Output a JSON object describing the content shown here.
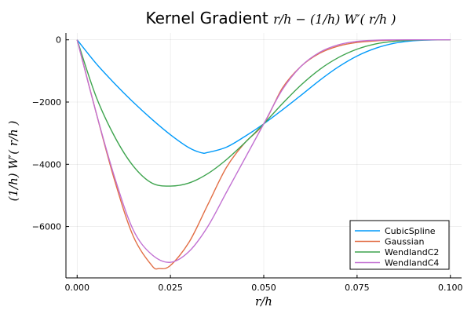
{
  "chart_data": {
    "type": "line",
    "title": "Kernel Gradient",
    "title_expr": "r/h − (1/h) W′( r/h )",
    "xlabel": "r/h",
    "ylabel": "(1/h) W′( r/h )",
    "xlim": [
      -0.003,
      0.103
    ],
    "ylim": [
      -7650,
      220
    ],
    "xticks": [
      0.0,
      0.025,
      0.05,
      0.075,
      0.1
    ],
    "xtick_labels": [
      "0.000",
      "0.025",
      "0.050",
      "0.075",
      "0.100"
    ],
    "yticks": [
      0,
      -2000,
      -4000,
      -6000
    ],
    "ytick_labels": [
      "0",
      "−2000",
      "−4000",
      "−6000"
    ],
    "grid": true,
    "legend_position": "bottom-right",
    "series": [
      {
        "name": "CubicSpline",
        "color": "#009AFA",
        "x": [
          0,
          0.005,
          0.01,
          0.015,
          0.02,
          0.025,
          0.03,
          0.0333,
          0.035,
          0.04,
          0.045,
          0.05,
          0.055,
          0.06,
          0.065,
          0.07,
          0.075,
          0.08,
          0.085,
          0.09,
          0.095,
          0.1
        ],
        "y": [
          0,
          -750,
          -1400,
          -2000,
          -2550,
          -3050,
          -3470,
          -3630,
          -3620,
          -3450,
          -3100,
          -2700,
          -2250,
          -1780,
          -1300,
          -870,
          -520,
          -270,
          -110,
          -30,
          -5,
          0
        ]
      },
      {
        "name": "Gaussian",
        "color": "#E26F46",
        "x": [
          0,
          0.005,
          0.01,
          0.015,
          0.02,
          0.022,
          0.025,
          0.03,
          0.035,
          0.04,
          0.045,
          0.05,
          0.055,
          0.06,
          0.065,
          0.07,
          0.075,
          0.08,
          0.085,
          0.09,
          0.095,
          0.1
        ],
        "y": [
          0,
          -2300,
          -4500,
          -6300,
          -7250,
          -7350,
          -7250,
          -6500,
          -5300,
          -4100,
          -3300,
          -2700,
          -1550,
          -850,
          -430,
          -200,
          -85,
          -32,
          -11,
          -3,
          -1,
          0
        ]
      },
      {
        "name": "WendlandC2",
        "color": "#3EA44E",
        "x": [
          0,
          0.005,
          0.01,
          0.015,
          0.02,
          0.025,
          0.03,
          0.035,
          0.04,
          0.045,
          0.05,
          0.055,
          0.06,
          0.065,
          0.07,
          0.075,
          0.08,
          0.085,
          0.09,
          0.095,
          0.1
        ],
        "y": [
          0,
          -1800,
          -3100,
          -4050,
          -4600,
          -4700,
          -4600,
          -4300,
          -3850,
          -3300,
          -2700,
          -2050,
          -1450,
          -950,
          -570,
          -300,
          -130,
          -45,
          -12,
          -2,
          0
        ]
      },
      {
        "name": "WendlandC4",
        "color": "#C271D2",
        "x": [
          0,
          0.005,
          0.01,
          0.015,
          0.02,
          0.025,
          0.03,
          0.035,
          0.04,
          0.045,
          0.05,
          0.055,
          0.06,
          0.065,
          0.07,
          0.075,
          0.08,
          0.085,
          0.09,
          0.095,
          0.1
        ],
        "y": [
          0,
          -2300,
          -4400,
          -6100,
          -6900,
          -7150,
          -6800,
          -6000,
          -4900,
          -3800,
          -2700,
          -1600,
          -850,
          -400,
          -160,
          -50,
          -12,
          -2,
          0,
          0,
          0
        ]
      }
    ]
  }
}
